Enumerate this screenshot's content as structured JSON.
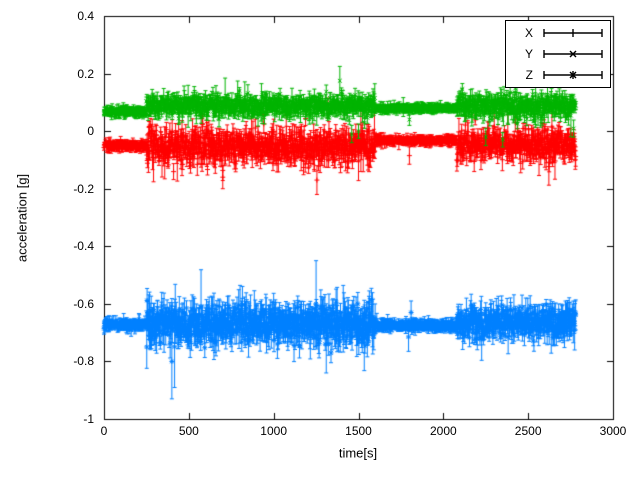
{
  "chart_data": {
    "type": "scatter",
    "subtype": "errorbars",
    "title": "",
    "xlabel": "time[s]",
    "ylabel": "acceleration [g]",
    "xlim": [
      0,
      3000
    ],
    "ylim": [
      -1,
      0.4
    ],
    "xticks": [
      0,
      500,
      1000,
      1500,
      2000,
      2500,
      3000
    ],
    "yticks": [
      -1,
      -0.8,
      -0.6,
      -0.4,
      -0.2,
      0,
      0.2,
      0.4
    ],
    "grid": false,
    "background": "#ffffff",
    "axis_color": "#000000",
    "legend": {
      "position": "top-right",
      "boxed": true
    },
    "sample_step": 2,
    "t_end": 2780,
    "series": [
      {
        "name": "X",
        "color": "#ff0000",
        "marker": "plus",
        "segments": [
          {
            "t0": 0,
            "t1": 250,
            "mean": -0.05,
            "sigma": 0.006,
            "err": 0.013,
            "spike_prob": 0.0,
            "spike_err": 0.0
          },
          {
            "t0": 250,
            "t1": 1600,
            "mean": -0.055,
            "sigma": 0.028,
            "err": 0.028,
            "spike_prob": 0.02,
            "spike_err": 0.07
          },
          {
            "t0": 1600,
            "t1": 2080,
            "mean": -0.032,
            "sigma": 0.005,
            "err": 0.012,
            "spike_prob": 0.002,
            "spike_err": 0.03
          },
          {
            "t0": 2080,
            "t1": 2780,
            "mean": -0.045,
            "sigma": 0.026,
            "err": 0.026,
            "spike_prob": 0.015,
            "spike_err": 0.06
          }
        ],
        "events": [
          {
            "t": 700,
            "y": -0.16,
            "err": 0.04
          },
          {
            "t": 1255,
            "y": -0.17,
            "err": 0.05
          },
          {
            "t": 1320,
            "y": 0.08,
            "err": 0.035
          },
          {
            "t": 1800,
            "y": -0.085,
            "err": 0.03
          }
        ]
      },
      {
        "name": "Y",
        "color": "#00b400",
        "marker": "cross",
        "segments": [
          {
            "t0": 0,
            "t1": 250,
            "mean": 0.068,
            "sigma": 0.005,
            "err": 0.012,
            "spike_prob": 0.0,
            "spike_err": 0.0
          },
          {
            "t0": 250,
            "t1": 1600,
            "mean": 0.088,
            "sigma": 0.016,
            "err": 0.02,
            "spike_prob": 0.015,
            "spike_err": 0.05
          },
          {
            "t0": 1600,
            "t1": 2080,
            "mean": 0.08,
            "sigma": 0.004,
            "err": 0.011,
            "spike_prob": 0.002,
            "spike_err": 0.02
          },
          {
            "t0": 2080,
            "t1": 2780,
            "mean": 0.085,
            "sigma": 0.02,
            "err": 0.022,
            "spike_prob": 0.02,
            "spike_err": 0.06
          }
        ],
        "events": [
          {
            "t": 1390,
            "y": 0.175,
            "err": 0.05
          },
          {
            "t": 1460,
            "y": -0.01,
            "err": 0.03
          },
          {
            "t": 1500,
            "y": 0.0,
            "err": 0.025
          },
          {
            "t": 1800,
            "y": 0.04,
            "err": 0.02
          },
          {
            "t": 2250,
            "y": -0.02,
            "err": 0.03
          },
          {
            "t": 2350,
            "y": -0.03,
            "err": 0.025
          }
        ]
      },
      {
        "name": "Z",
        "color": "#0080ff",
        "marker": "star",
        "segments": [
          {
            "t0": 0,
            "t1": 250,
            "mean": -0.672,
            "sigma": 0.006,
            "err": 0.015,
            "spike_prob": 0.0,
            "spike_err": 0.0
          },
          {
            "t0": 250,
            "t1": 1600,
            "mean": -0.67,
            "sigma": 0.03,
            "err": 0.038,
            "spike_prob": 0.02,
            "spike_err": 0.09
          },
          {
            "t0": 1600,
            "t1": 2080,
            "mean": -0.675,
            "sigma": 0.005,
            "err": 0.014,
            "spike_prob": 0.002,
            "spike_err": 0.03
          },
          {
            "t0": 2080,
            "t1": 2780,
            "mean": -0.665,
            "sigma": 0.026,
            "err": 0.03,
            "spike_prob": 0.015,
            "spike_err": 0.07
          }
        ],
        "events": [
          {
            "t": 400,
            "y": -0.8,
            "err": 0.13
          },
          {
            "t": 1250,
            "y": -0.6,
            "err": 0.15
          },
          {
            "t": 1310,
            "y": -0.72,
            "err": 0.12
          },
          {
            "t": 1795,
            "y": -0.715,
            "err": 0.05
          },
          {
            "t": 1810,
            "y": -0.63,
            "err": 0.04
          }
        ]
      }
    ]
  }
}
